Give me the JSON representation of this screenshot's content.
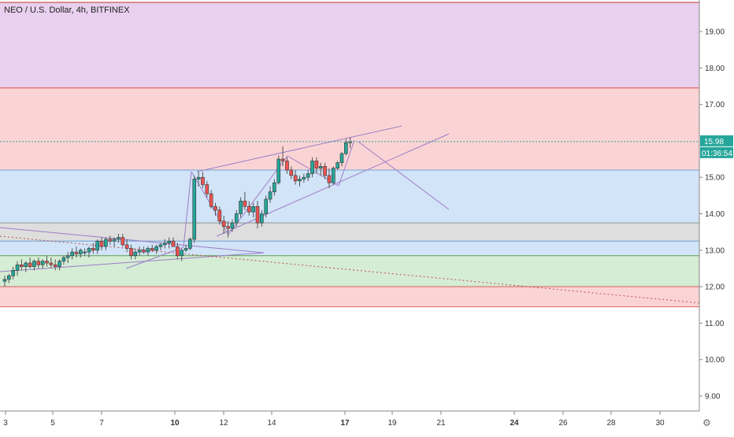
{
  "chart_data": {
    "type": "candlestick",
    "title": "NEO / U.S. Dollar, 4h, BITFINEX",
    "xlabel": "",
    "ylabel": "",
    "x_ticks": [
      "3",
      "5",
      "7",
      "10",
      "12",
      "14",
      "17",
      "19",
      "21",
      "24",
      "26",
      "28",
      "30"
    ],
    "y_ticks": [
      "19.00",
      "18.00",
      "17.00",
      "15.00",
      "14.00",
      "13.00",
      "12.00",
      "11.00",
      "10.00",
      "9.00"
    ],
    "ylim": [
      8.45,
      19.8
    ],
    "current_price": {
      "label": "15.98",
      "value": 15.98,
      "color": "#26a69a"
    },
    "countdown": {
      "label": "01:36:54"
    },
    "colors": {
      "up": "#26a69a",
      "down": "#ef5350",
      "wick": "#555555",
      "line": "#9c7ec8"
    },
    "zones": [
      {
        "from": 17.45,
        "to": 19.8,
        "color": "#e8d0ee",
        "border": "#c0392b"
      },
      {
        "from": 15.2,
        "to": 17.45,
        "color": "#fad4d4",
        "border": "#e06666"
      },
      {
        "from": 13.75,
        "to": 15.2,
        "color": "#d2e4f7",
        "border": "#6fa8dc"
      },
      {
        "from": 13.25,
        "to": 13.75,
        "color": "#dedede",
        "border": "#999999"
      },
      {
        "from": 12.85,
        "to": 13.25,
        "color": "#d2e4f7",
        "border": "#6fa8dc"
      },
      {
        "from": 12.0,
        "to": 12.85,
        "color": "#d5ecd5",
        "border": "#6aa84f"
      },
      {
        "from": 11.45,
        "to": 12.0,
        "color": "#fad4d4",
        "border": "#e06666"
      }
    ],
    "candles": [
      [
        12.15,
        12.3,
        12.0,
        12.2
      ],
      [
        12.2,
        12.35,
        12.1,
        12.3
      ],
      [
        12.3,
        12.55,
        12.2,
        12.45
      ],
      [
        12.45,
        12.7,
        12.3,
        12.6
      ],
      [
        12.6,
        12.75,
        12.45,
        12.55
      ],
      [
        12.55,
        12.7,
        12.4,
        12.65
      ],
      [
        12.65,
        12.8,
        12.5,
        12.55
      ],
      [
        12.55,
        12.75,
        12.45,
        12.7
      ],
      [
        12.7,
        12.8,
        12.5,
        12.6
      ],
      [
        12.6,
        12.75,
        12.5,
        12.7
      ],
      [
        12.7,
        12.85,
        12.55,
        12.65
      ],
      [
        12.65,
        12.8,
        12.5,
        12.6
      ],
      [
        12.6,
        12.75,
        12.45,
        12.55
      ],
      [
        12.55,
        12.75,
        12.45,
        12.7
      ],
      [
        12.7,
        12.85,
        12.6,
        12.8
      ],
      [
        12.8,
        12.95,
        12.65,
        12.85
      ],
      [
        12.85,
        13.05,
        12.75,
        12.95
      ],
      [
        12.95,
        13.1,
        12.8,
        12.9
      ],
      [
        12.9,
        13.05,
        12.8,
        13.0
      ],
      [
        12.95,
        13.05,
        12.85,
        12.95
      ],
      [
        12.95,
        13.1,
        12.8,
        13.05
      ],
      [
        13.05,
        13.2,
        12.9,
        13.0
      ],
      [
        13.0,
        13.3,
        12.9,
        13.25
      ],
      [
        13.25,
        13.35,
        13.0,
        13.1
      ],
      [
        13.1,
        13.35,
        13.0,
        13.3
      ],
      [
        13.3,
        13.4,
        13.15,
        13.25
      ],
      [
        13.25,
        13.35,
        13.1,
        13.3
      ],
      [
        13.3,
        13.45,
        13.2,
        13.35
      ],
      [
        13.35,
        13.45,
        13.1,
        13.15
      ],
      [
        13.15,
        13.3,
        12.95,
        13.05
      ],
      [
        13.05,
        13.15,
        12.75,
        12.85
      ],
      [
        12.85,
        13.05,
        12.75,
        12.95
      ],
      [
        12.95,
        13.1,
        12.85,
        13.0
      ],
      [
        13.0,
        13.1,
        12.9,
        12.95
      ],
      [
        12.95,
        13.1,
        12.85,
        13.05
      ],
      [
        13.05,
        13.15,
        12.95,
        13.0
      ],
      [
        13.0,
        13.15,
        12.9,
        13.1
      ],
      [
        13.1,
        13.2,
        13.0,
        13.15
      ],
      [
        13.15,
        13.3,
        13.05,
        13.2
      ],
      [
        13.2,
        13.35,
        13.05,
        13.25
      ],
      [
        13.25,
        13.35,
        13.1,
        13.1
      ],
      [
        13.1,
        13.2,
        12.75,
        12.85
      ],
      [
        12.85,
        13.05,
        12.7,
        13.0
      ],
      [
        13.0,
        13.15,
        12.95,
        13.05
      ],
      [
        13.05,
        13.35,
        13.0,
        13.3
      ],
      [
        13.3,
        15.05,
        13.2,
        14.95
      ],
      [
        14.95,
        15.15,
        14.75,
        15.0
      ],
      [
        15.0,
        15.15,
        14.7,
        14.8
      ],
      [
        14.8,
        14.9,
        14.45,
        14.55
      ],
      [
        14.55,
        14.65,
        14.15,
        14.2
      ],
      [
        14.2,
        14.3,
        13.95,
        14.1
      ],
      [
        14.1,
        14.2,
        13.7,
        13.8
      ],
      [
        13.8,
        13.95,
        13.45,
        13.65
      ],
      [
        13.65,
        13.8,
        13.35,
        13.6
      ],
      [
        13.6,
        13.85,
        13.5,
        13.75
      ],
      [
        13.75,
        14.1,
        13.65,
        14.0
      ],
      [
        14.0,
        14.45,
        13.9,
        14.35
      ],
      [
        14.35,
        14.6,
        14.1,
        14.2
      ],
      [
        14.2,
        14.35,
        13.95,
        14.05
      ],
      [
        14.05,
        14.3,
        13.9,
        14.2
      ],
      [
        14.2,
        14.35,
        13.6,
        13.75
      ],
      [
        13.75,
        14.1,
        13.65,
        14.0
      ],
      [
        14.0,
        14.5,
        13.9,
        14.4
      ],
      [
        14.4,
        14.75,
        14.3,
        14.6
      ],
      [
        14.6,
        14.95,
        14.5,
        14.85
      ],
      [
        14.85,
        15.6,
        14.8,
        15.5
      ],
      [
        15.5,
        15.85,
        15.3,
        15.45
      ],
      [
        15.45,
        15.55,
        15.1,
        15.2
      ],
      [
        15.2,
        15.3,
        14.95,
        15.05
      ],
      [
        15.05,
        15.2,
        14.8,
        14.9
      ],
      [
        14.9,
        15.05,
        14.75,
        14.95
      ],
      [
        14.95,
        15.1,
        14.85,
        15.0
      ],
      [
        15.0,
        15.2,
        14.9,
        15.1
      ],
      [
        15.1,
        15.55,
        15.0,
        15.45
      ],
      [
        15.45,
        15.55,
        15.1,
        15.25
      ],
      [
        15.25,
        15.4,
        15.05,
        15.3
      ],
      [
        15.3,
        15.4,
        14.95,
        15.05
      ],
      [
        15.05,
        15.25,
        14.7,
        14.85
      ],
      [
        14.85,
        15.3,
        14.8,
        15.25
      ],
      [
        15.25,
        15.45,
        15.2,
        15.4
      ],
      [
        15.4,
        15.7,
        15.3,
        15.65
      ],
      [
        15.65,
        16.05,
        15.6,
        15.95
      ],
      [
        15.95,
        16.1,
        15.8,
        15.98
      ]
    ]
  }
}
